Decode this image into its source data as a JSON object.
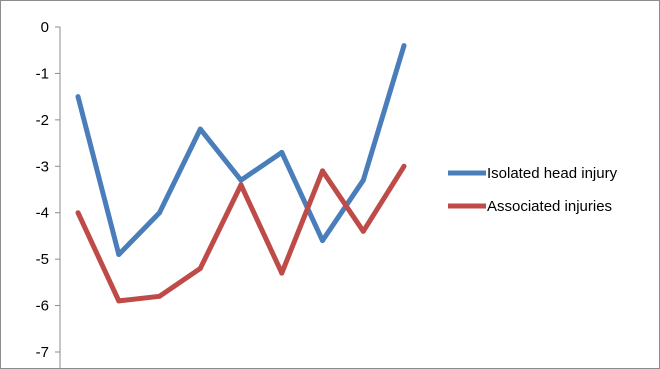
{
  "chart_data": {
    "type": "line",
    "title": "",
    "xlabel": "",
    "ylabel": "",
    "x": [
      1,
      2,
      3,
      4,
      5,
      6,
      7,
      8,
      9
    ],
    "ylim": [
      -7,
      0
    ],
    "yticks": [
      "0",
      "-1",
      "-2",
      "-3",
      "-4",
      "-5",
      "-6",
      "-7"
    ],
    "grid": false,
    "legend_position": "right",
    "series": [
      {
        "name": "Isolated head injury",
        "color": "#4a7ebb",
        "values": [
          -1.5,
          -4.9,
          -4.0,
          -2.2,
          -3.3,
          -2.7,
          -4.6,
          -3.3,
          -0.4
        ]
      },
      {
        "name": "Associated injuries",
        "color": "#be4b48",
        "values": [
          -4.0,
          -5.9,
          -5.8,
          -5.2,
          -3.4,
          -5.3,
          -3.1,
          -4.4,
          -3.0
        ]
      }
    ]
  }
}
